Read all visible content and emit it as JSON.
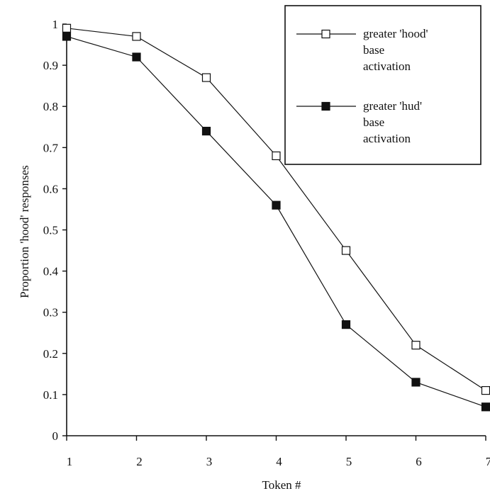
{
  "chart_data": {
    "type": "line",
    "x": [
      1,
      2,
      3,
      4,
      5,
      6,
      7
    ],
    "x_tick_labels": [
      "1",
      "2",
      "3",
      "4",
      "5",
      "6",
      "7"
    ],
    "y_tick_labels": [
      "0",
      "0.1",
      "0.2",
      "0.3",
      "0.4",
      "0.5",
      "0.6",
      "0.7",
      "0.8",
      "0.9",
      "1"
    ],
    "xlabel": "Token #",
    "ylabel": "Proportion 'hood' responses",
    "xlim": [
      1,
      7
    ],
    "ylim": [
      0,
      1
    ],
    "grid": false,
    "legend_position": "top-right",
    "series": [
      {
        "name": "greater 'hood' base activation",
        "legend_lines": [
          "greater 'hood'",
          "base",
          "activation"
        ],
        "marker": "open-square",
        "color": "#111111",
        "values": [
          0.99,
          0.97,
          0.87,
          0.68,
          0.45,
          0.22,
          0.11
        ]
      },
      {
        "name": "greater 'hud' base activation",
        "legend_lines": [
          "greater 'hud'",
          "base",
          "activation"
        ],
        "marker": "filled-square",
        "color": "#111111",
        "values": [
          0.97,
          0.92,
          0.74,
          0.56,
          0.27,
          0.13,
          0.07
        ]
      }
    ]
  }
}
